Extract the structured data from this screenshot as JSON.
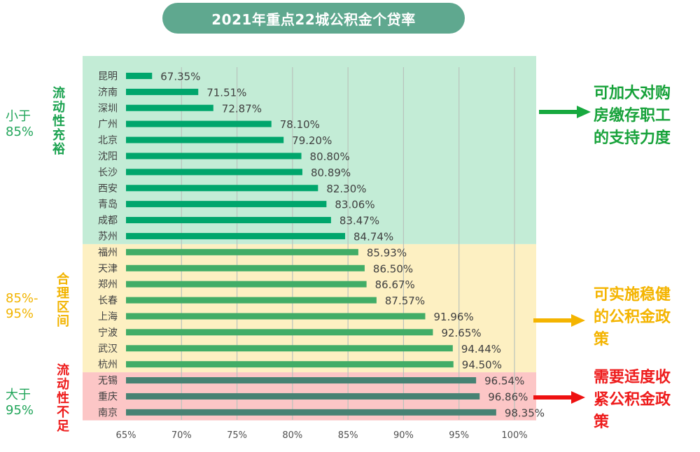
{
  "title": "2021年重点22城公积金个贷率",
  "chart_data": {
    "type": "bar",
    "orientation": "horizontal",
    "title": "2021年重点22城公积金个贷率",
    "categories": [
      "昆明",
      "济南",
      "深圳",
      "广州",
      "北京",
      "沈阳",
      "长沙",
      "西安",
      "青岛",
      "成都",
      "苏州",
      "福州",
      "天津",
      "郑州",
      "长春",
      "上海",
      "宁波",
      "武汉",
      "杭州",
      "无锡",
      "重庆",
      "南京"
    ],
    "values": [
      67.35,
      71.51,
      72.87,
      78.1,
      79.2,
      80.8,
      80.89,
      82.3,
      83.06,
      83.47,
      84.74,
      85.93,
      86.5,
      86.67,
      87.57,
      91.96,
      92.65,
      94.44,
      94.5,
      96.54,
      96.86,
      98.35
    ],
    "value_labels": [
      "67.35%",
      "71.51%",
      "72.87%",
      "78.10%",
      "79.20%",
      "80.80%",
      "80.89%",
      "82.30%",
      "83.06%",
      "83.47%",
      "84.74%",
      "85.93%",
      "86.50%",
      "86.67%",
      "87.57%",
      "91.96%",
      "92.65%",
      "94.44%",
      "94.50%",
      "96.54%",
      "96.86%",
      "98.35%"
    ],
    "xlim": [
      65,
      100
    ],
    "x_ticks": [
      "65%",
      "70%",
      "75%",
      "80%",
      "85%",
      "90%",
      "95%",
      "100%"
    ],
    "grid": "vertical",
    "bands": [
      {
        "from_index": 0,
        "to_index": 10,
        "fill": "#c3ecd6",
        "bar_color": "#00a66c"
      },
      {
        "from_index": 11,
        "to_index": 18,
        "fill": "#fdf0c2",
        "bar_color": "#42ad67"
      },
      {
        "from_index": 19,
        "to_index": 21,
        "fill": "#fcc6c6",
        "bar_color": "#478273"
      }
    ]
  },
  "groups": [
    {
      "range_label": "小于\n85%",
      "range_color": "#21a55a",
      "desc": "流动性充裕",
      "desc_color": "#1aa24f",
      "callout": "可加大对购\n房缴存职工\n的支持力度",
      "callout_color": "#17a23a",
      "arrow_color": "#17a93f"
    },
    {
      "range_label": "85%-\n95%",
      "range_color": "#f2b400",
      "desc": "合理区间",
      "desc_color": "#f2b400",
      "callout": "可实施稳健\n的公积金政\n策",
      "callout_color": "#f4b400",
      "arrow_color": "#f4b400"
    },
    {
      "range_label": "大于\n95%",
      "range_color": "#21a55a",
      "desc": "流动性不足",
      "desc_color": "#ee1b1b",
      "callout": "需要适度收\n紧公积金政\n策",
      "callout_color": "#ee1b1b",
      "arrow_color": "#ee1111"
    }
  ]
}
